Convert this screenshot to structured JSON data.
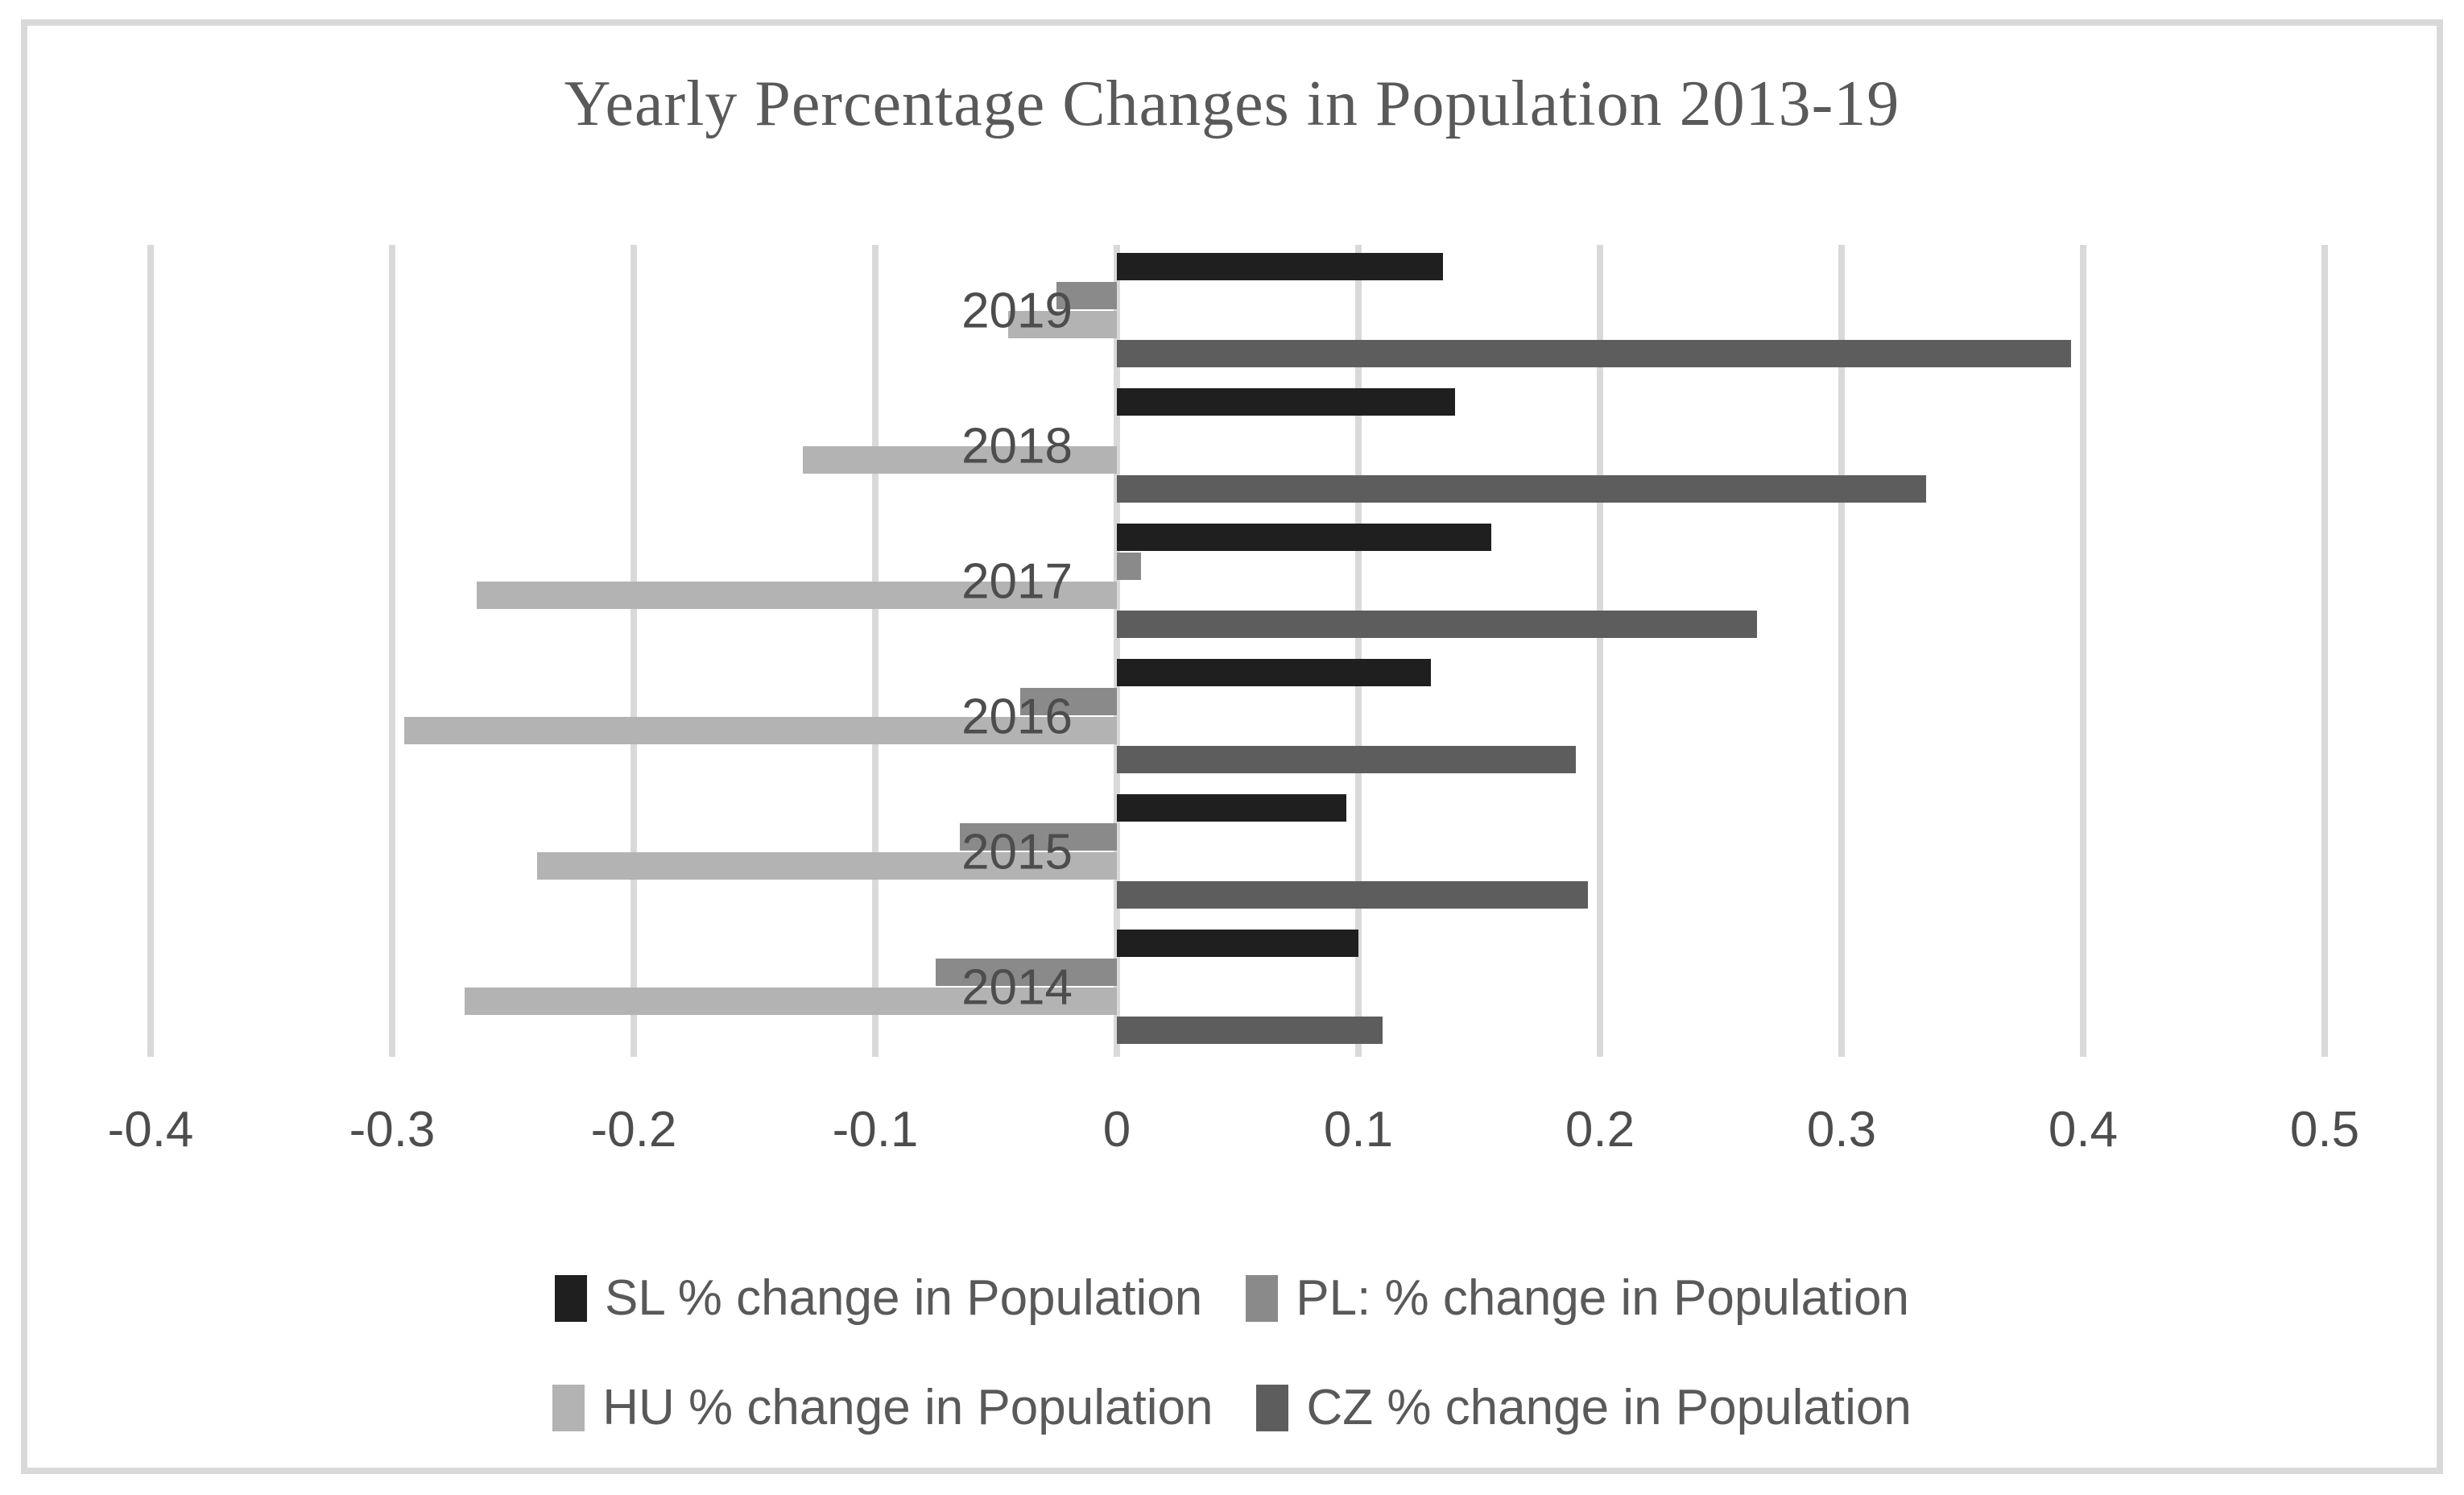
{
  "chart_data": {
    "type": "bar",
    "orientation": "horizontal",
    "title": "Yearly Percentage Changes in Population 2013-19",
    "categories": [
      "2019",
      "2018",
      "2017",
      "2016",
      "2015",
      "2014"
    ],
    "series": [
      {
        "code": "SL",
        "name": "SL % change in Population",
        "color": "#1f1f1f",
        "values": [
          0.135,
          0.14,
          0.155,
          0.13,
          0.095,
          0.1
        ]
      },
      {
        "code": "PL",
        "name": "PL: % change in Population",
        "color": "#8a8a8a",
        "values": [
          -0.025,
          0,
          0.01,
          -0.04,
          -0.065,
          -0.075
        ]
      },
      {
        "code": "HU",
        "name": "HU % change in Population",
        "color": "#b3b3b3",
        "values": [
          -0.045,
          -0.13,
          -0.265,
          -0.295,
          -0.24,
          -0.27
        ]
      },
      {
        "code": "CZ",
        "name": "CZ % change in Population",
        "color": "#5d5d5d",
        "values": [
          0.395,
          0.335,
          0.265,
          0.19,
          0.195,
          0.11
        ]
      }
    ],
    "ticks": [
      -0.4,
      -0.3,
      -0.2,
      -0.1,
      0,
      0.1,
      0.2,
      0.3,
      0.4,
      0.5
    ],
    "tick_labels": [
      "-0.4",
      "-0.3",
      "-0.2",
      "-0.1",
      "0",
      "0.1",
      "0.2",
      "0.3",
      "0.4",
      "0.5"
    ],
    "xlim": [
      -0.45,
      0.55
    ],
    "grid": true,
    "legend_position": "bottom",
    "legend_rows": [
      [
        0,
        1
      ],
      [
        2,
        3
      ]
    ]
  },
  "colors": {
    "background": "#ffffff",
    "frame_border": "#d9d9d9",
    "gridline": "#d9d9d9",
    "title_text": "#595959",
    "axis_text": "#4d4d4d",
    "category_text": "#4d4d4d",
    "legend_text": "#595959"
  }
}
